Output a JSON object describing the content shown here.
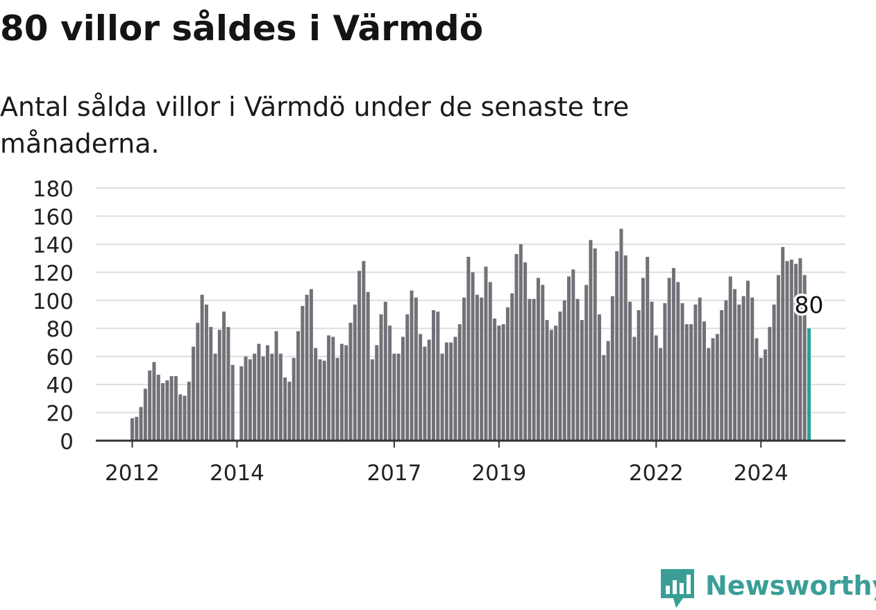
{
  "header": {
    "title": "80 villor såldes i Värmdö",
    "subtitle": "Antal sålda villor i Värmdö under de senaste tre månaderna."
  },
  "brand": {
    "name": "Newsworthy",
    "color": "#3a9e96"
  },
  "colors": {
    "bar": "#727178",
    "highlight": "#1ea59a",
    "grid": "#dddddd",
    "axis": "#333333"
  },
  "chart_data": {
    "type": "bar",
    "title": "80 villor såldes i Värmdö",
    "subtitle": "Antal sålda villor i Värmdö under de senaste tre månaderna.",
    "xlabel": "",
    "ylabel": "",
    "ylim": [
      0,
      180
    ],
    "yticks": [
      0,
      20,
      40,
      60,
      80,
      100,
      120,
      140,
      160,
      180
    ],
    "xticks": [
      {
        "label": "2012",
        "index": 0
      },
      {
        "label": "2014",
        "index": 24
      },
      {
        "label": "2017",
        "index": 60
      },
      {
        "label": "2019",
        "index": 84
      },
      {
        "label": "2022",
        "index": 120
      },
      {
        "label": "2024",
        "index": 144
      }
    ],
    "grid": true,
    "legend": "none",
    "start": "2012-01",
    "frequency": "monthly",
    "highlight_label": "80",
    "values": [
      16,
      17,
      24,
      37,
      50,
      56,
      47,
      41,
      43,
      46,
      46,
      33,
      32,
      42,
      67,
      84,
      104,
      97,
      81,
      62,
      79,
      92,
      81,
      54,
      null,
      53,
      60,
      58,
      62,
      69,
      60,
      68,
      62,
      78,
      62,
      45,
      42,
      59,
      78,
      96,
      104,
      108,
      66,
      58,
      57,
      75,
      74,
      59,
      69,
      68,
      84,
      97,
      121,
      128,
      106,
      58,
      68,
      90,
      99,
      82,
      62,
      62,
      74,
      90,
      107,
      102,
      76,
      67,
      72,
      93,
      92,
      62,
      70,
      70,
      74,
      83,
      102,
      131,
      120,
      104,
      102,
      124,
      113,
      87,
      82,
      83,
      95,
      105,
      133,
      140,
      127,
      101,
      101,
      116,
      111,
      86,
      79,
      82,
      92,
      100,
      117,
      122,
      101,
      86,
      111,
      143,
      137,
      90,
      61,
      71,
      103,
      135,
      151,
      132,
      99,
      74,
      93,
      116,
      131,
      99,
      75,
      66,
      98,
      116,
      123,
      113,
      98,
      83,
      83,
      97,
      102,
      85,
      66,
      73,
      76,
      93,
      100,
      117,
      108,
      97,
      103,
      114,
      102,
      73,
      59,
      65,
      81,
      97,
      118,
      138,
      128,
      129,
      126,
      130,
      118,
      80
    ]
  }
}
